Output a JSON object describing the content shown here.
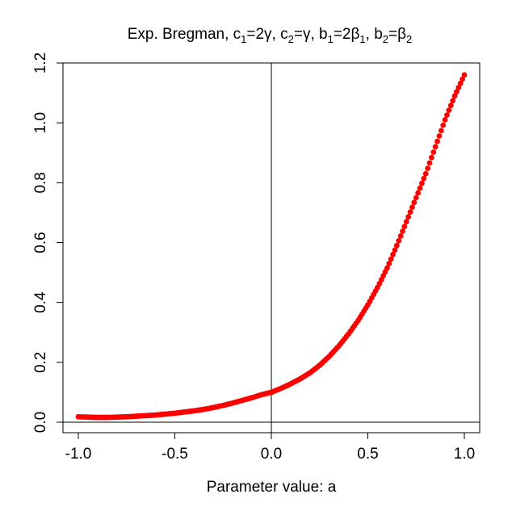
{
  "chart_data": {
    "type": "scatter",
    "title": "Exp. Bregman, c1=2γ, c2=γ, b1=2β1, b2=β2",
    "title_parts": {
      "prefix": "Exp. Bregman, c",
      "c1_sub": "1",
      "c1_rest": "=2γ, c",
      "c2_sub": "2",
      "c2_rest": "=γ, b",
      "b1_sub": "1",
      "b1_rest": "=2β",
      "b1b_sub": "1",
      "b1b_rest": ", b",
      "b2_sub": "2",
      "b2_rest": "=β",
      "b2b_sub": "2"
    },
    "xlabel": "Parameter value: a",
    "ylabel": "",
    "xlim": [
      -1.0,
      1.0
    ],
    "ylim": [
      0.0,
      1.2
    ],
    "x_ticks": [
      -1.0,
      -0.5,
      0.0,
      0.5,
      1.0
    ],
    "x_tick_labels": [
      "-1.0",
      "-0.5",
      "0.0",
      "0.5",
      "1.0"
    ],
    "y_ticks": [
      0.0,
      0.2,
      0.4,
      0.6,
      0.8,
      1.0,
      1.2
    ],
    "y_tick_labels": [
      "0.0",
      "0.2",
      "0.4",
      "0.6",
      "0.8",
      "1.0",
      "1.2"
    ],
    "reference_lines": {
      "vertical_x": 0.0,
      "horizontal_y": 0.0
    },
    "grid": false,
    "series": [
      {
        "color": "#ff0000",
        "marker": "filled-circle",
        "x": [
          -1.0,
          -0.95,
          -0.9,
          -0.85,
          -0.8,
          -0.75,
          -0.7,
          -0.65,
          -0.6,
          -0.55,
          -0.5,
          -0.45,
          -0.4,
          -0.35,
          -0.3,
          -0.25,
          -0.2,
          -0.15,
          -0.1,
          -0.05,
          0.0,
          0.05,
          0.1,
          0.15,
          0.2,
          0.25,
          0.3,
          0.35,
          0.4,
          0.45,
          0.5,
          0.55,
          0.6,
          0.65,
          0.7,
          0.75,
          0.8,
          0.85,
          0.9,
          0.95,
          1.0
        ],
        "y": [
          0.018,
          0.017,
          0.016,
          0.016,
          0.017,
          0.018,
          0.02,
          0.022,
          0.024,
          0.027,
          0.03,
          0.034,
          0.038,
          0.043,
          0.049,
          0.056,
          0.064,
          0.073,
          0.082,
          0.092,
          0.1,
          0.113,
          0.128,
          0.145,
          0.165,
          0.19,
          0.22,
          0.255,
          0.295,
          0.34,
          0.392,
          0.45,
          0.515,
          0.59,
          0.67,
          0.75,
          0.83,
          0.92,
          1.01,
          1.09,
          1.16
        ]
      }
    ]
  }
}
